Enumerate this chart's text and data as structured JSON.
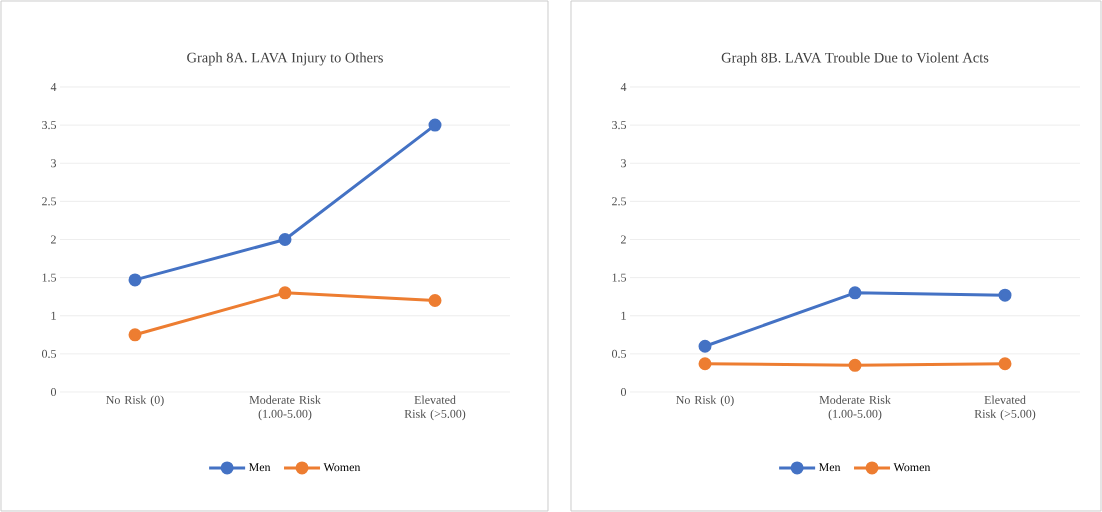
{
  "chart_data": [
    {
      "type": "line",
      "title": "Graph 8A. LAVA Injury to Others",
      "categories": [
        "No Risk (0)",
        "Moderate Risk (1.00-5.00)",
        "Elevated Risk (>5.00)"
      ],
      "series": [
        {
          "name": "Men",
          "color": "#4472c4",
          "values": [
            1.47,
            2.0,
            3.5
          ]
        },
        {
          "name": "Women",
          "color": "#ed7d31",
          "values": [
            0.75,
            1.3,
            1.2
          ]
        }
      ],
      "ylim": [
        0,
        4
      ],
      "yticks": [
        0,
        0.5,
        1,
        1.5,
        2,
        2.5,
        3,
        3.5,
        4
      ],
      "grid": "y",
      "legend": "bottom",
      "marker": "circle"
    },
    {
      "type": "line",
      "title": "Graph 8B. LAVA Trouble Due to Violent Acts",
      "categories": [
        "No Risk (0)",
        "Moderate Risk (1.00-5.00)",
        "Elevated Risk (>5.00)"
      ],
      "series": [
        {
          "name": "Men",
          "color": "#4472c4",
          "values": [
            0.6,
            1.3,
            1.27
          ]
        },
        {
          "name": "Women",
          "color": "#ed7d31",
          "values": [
            0.37,
            0.35,
            0.37
          ]
        }
      ],
      "ylim": [
        0,
        4
      ],
      "yticks": [
        0,
        0.5,
        1,
        1.5,
        2,
        2.5,
        3,
        3.5,
        4
      ],
      "grid": "y",
      "legend": "bottom",
      "marker": "circle"
    }
  ]
}
